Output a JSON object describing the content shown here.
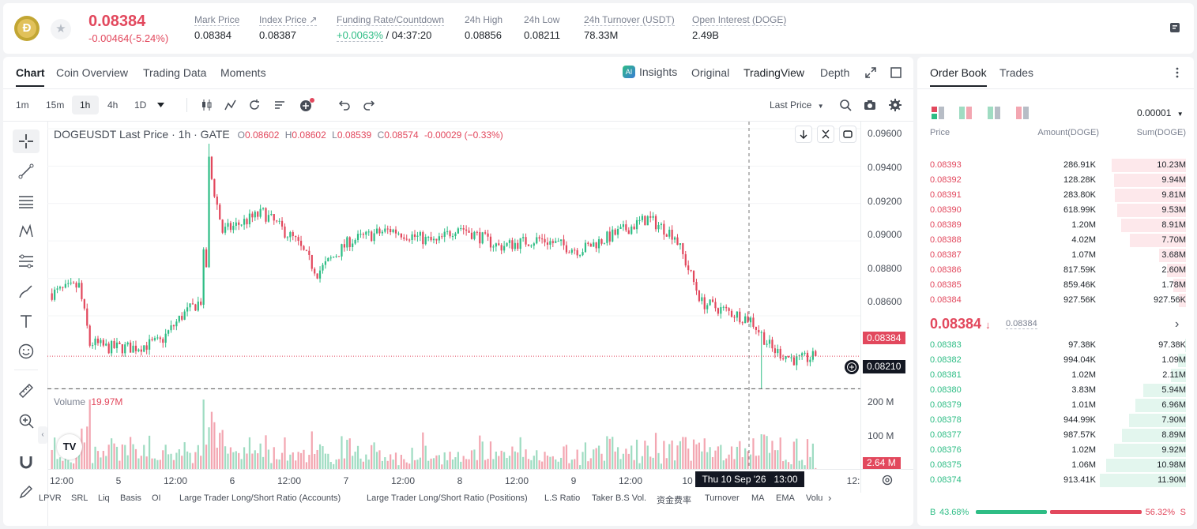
{
  "ticker": {
    "last_price": "0.08384",
    "change": "-0.00464(-5.24%)",
    "stats": [
      {
        "label": "Mark Price",
        "value": "0.08384"
      },
      {
        "label": "Index Price ↗",
        "value": "0.08387"
      },
      {
        "label": "Funding Rate/Countdown",
        "value": "+0.0063%",
        "value2": " / 04:37:20"
      },
      {
        "label": "24h High",
        "value": "0.08856"
      },
      {
        "label": "24h Low",
        "value": "0.08211"
      },
      {
        "label": "24h Turnover (USDT)",
        "value": "78.33M"
      },
      {
        "label": "Open Interest (DOGE)",
        "value": "2.49B"
      }
    ]
  },
  "chart_tabs": [
    "Chart",
    "Coin Overview",
    "Trading Data",
    "Moments"
  ],
  "chart_tabs_active": "Chart",
  "view_modes": {
    "insights": "Insights",
    "original": "Original",
    "tradingview": "TradingView",
    "depth": "Depth"
  },
  "intervals": [
    "1m",
    "15m",
    "1h",
    "4h",
    "1D"
  ],
  "interval_active": "1h",
  "price_type": "Last Price",
  "legend": {
    "symbol": "DOGEUSDT Last Price · 1h · GATE",
    "o_label": "O",
    "o": "0.08602",
    "h_label": "H",
    "h": "0.08602",
    "l_label": "L",
    "l": "0.08539",
    "c_label": "C",
    "c": "0.08574",
    "chg": "-0.00029 (−0.33%)"
  },
  "volume_label": "Volume",
  "volume_value": "19.97M",
  "price_axis": [
    "0.09600",
    "0.09400",
    "0.09200",
    "0.09000",
    "0.08800",
    "0.08600"
  ],
  "volume_axis": [
    "200 M",
    "100 M"
  ],
  "last_price_tag": "0.08384",
  "cursor_price_tag": "0.08210",
  "volume_tag": "2.64 M",
  "time_axis": [
    "12:00",
    "5",
    "12:00",
    "6",
    "12:00",
    "7",
    "12:00",
    "8",
    "12:00",
    "9",
    "12:00",
    "10",
    "12:"
  ],
  "cursor_time": "Thu 10 Sep '26   13:00",
  "indicators": [
    "LPVR",
    "SRL",
    "Liq",
    "Basis",
    "OI",
    "Large Trader Long/Short Ratio (Accounts)",
    "Large Trader Long/Short Ratio (Positions)",
    "L.S Ratio",
    "Taker B.S Vol.",
    "资金费率",
    "Turnover",
    "MA",
    "EMA",
    "Volu"
  ],
  "chart_data": {
    "type": "candlestick",
    "interval": "1h",
    "price_range": [
      0.0822,
      0.096
    ],
    "volume_range": [
      0,
      200
    ],
    "volume_unit": "M",
    "last_price": 0.08384,
    "cursor_price": 0.0821,
    "candles": [],
    "volumes": []
  },
  "orderbook": {
    "tabs": [
      "Order Book",
      "Trades"
    ],
    "precision": "0.00001",
    "headers": [
      "Price",
      "Amount(DOGE)",
      "Sum(DOGE)"
    ],
    "asks": [
      [
        "0.08393",
        "286.91K",
        "10.23M",
        10.23
      ],
      [
        "0.08392",
        "128.28K",
        "9.94M",
        9.94
      ],
      [
        "0.08391",
        "283.80K",
        "9.81M",
        9.81
      ],
      [
        "0.08390",
        "618.99K",
        "9.53M",
        9.53
      ],
      [
        "0.08389",
        "1.20M",
        "8.91M",
        8.91
      ],
      [
        "0.08388",
        "4.02M",
        "7.70M",
        7.7
      ],
      [
        "0.08387",
        "1.07M",
        "3.68M",
        3.68
      ],
      [
        "0.08386",
        "817.59K",
        "2.60M",
        2.6
      ],
      [
        "0.08385",
        "859.46K",
        "1.78M",
        1.78
      ],
      [
        "0.08384",
        "927.56K",
        "927.56K",
        0.93
      ]
    ],
    "mid_price": "0.08384",
    "mid_mark": "0.08384",
    "bids": [
      [
        "0.08383",
        "97.38K",
        "97.38K",
        0.1
      ],
      [
        "0.08382",
        "994.04K",
        "1.09M",
        1.09
      ],
      [
        "0.08381",
        "1.02M",
        "2.11M",
        2.11
      ],
      [
        "0.08380",
        "3.83M",
        "5.94M",
        5.94
      ],
      [
        "0.08379",
        "1.01M",
        "6.96M",
        6.96
      ],
      [
        "0.08378",
        "944.99K",
        "7.90M",
        7.9
      ],
      [
        "0.08377",
        "987.57K",
        "8.89M",
        8.89
      ],
      [
        "0.08376",
        "1.02M",
        "9.92M",
        9.92
      ],
      [
        "0.08375",
        "1.06M",
        "10.98M",
        10.98
      ],
      [
        "0.08374",
        "913.41K",
        "11.90M",
        11.9
      ]
    ],
    "buy_label": "B",
    "buy_pct": "43.68%",
    "buy_ratio": 0.4368,
    "sell_label": "S",
    "sell_pct": "56.32%"
  },
  "colors": {
    "up": "#2ebd85",
    "down": "#e2485d",
    "up_vol": "#9fdcc2",
    "down_vol": "#f3a6b1"
  }
}
